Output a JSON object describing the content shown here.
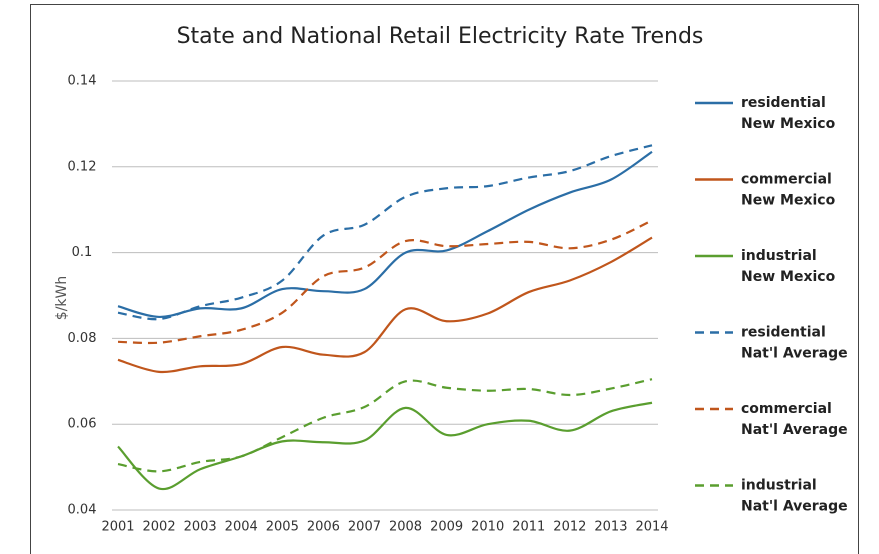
{
  "chart_data": {
    "type": "line",
    "title": "State and National Retail Electricity Rate Trends",
    "y_label": "$/kWh",
    "categories": [
      "2001",
      "2002",
      "2003",
      "2004",
      "2005",
      "2006",
      "2007",
      "2008",
      "2009",
      "2010",
      "2011",
      "2012",
      "2013",
      "2014"
    ],
    "series": [
      {
        "name": "residential New Mexico",
        "color": "#2b6ea6",
        "dashed": false,
        "values": [
          0.0875,
          0.085,
          0.087,
          0.087,
          0.0915,
          0.091,
          0.0915,
          0.1,
          0.1005,
          0.105,
          0.11,
          0.114,
          0.117,
          0.1235
        ]
      },
      {
        "name": "commercial New Mexico",
        "color": "#c0561c",
        "dashed": false,
        "values": [
          0.075,
          0.0722,
          0.0735,
          0.074,
          0.078,
          0.0762,
          0.0768,
          0.0868,
          0.084,
          0.0858,
          0.0908,
          0.0935,
          0.0978,
          0.1035
        ]
      },
      {
        "name": "industrial New Mexico",
        "color": "#5a9e2f",
        "dashed": false,
        "values": [
          0.0548,
          0.045,
          0.0495,
          0.0525,
          0.056,
          0.0558,
          0.0562,
          0.0638,
          0.0575,
          0.06,
          0.0608,
          0.0585,
          0.063,
          0.065
        ]
      },
      {
        "name": "residential Nat'l Average",
        "color": "#2b6ea6",
        "dashed": true,
        "values": [
          0.086,
          0.0845,
          0.0875,
          0.0895,
          0.0935,
          0.104,
          0.1065,
          0.113,
          0.115,
          0.1155,
          0.1175,
          0.119,
          0.1225,
          0.125
        ]
      },
      {
        "name": "commercial Nat'l Average",
        "color": "#c0561c",
        "dashed": true,
        "values": [
          0.0792,
          0.079,
          0.0805,
          0.082,
          0.086,
          0.0945,
          0.0965,
          0.1027,
          0.1015,
          0.102,
          0.1025,
          0.101,
          0.103,
          0.1075
        ]
      },
      {
        "name": "industrial Nat'l Average",
        "color": "#5a9e2f",
        "dashed": true,
        "values": [
          0.0507,
          0.049,
          0.0512,
          0.0525,
          0.057,
          0.0615,
          0.064,
          0.07,
          0.0685,
          0.0678,
          0.0682,
          0.0668,
          0.0683,
          0.0705
        ]
      }
    ],
    "ylim": [
      0.04,
      0.14
    ],
    "yticks": [
      0.04,
      0.06,
      0.08,
      0.1,
      0.12,
      0.14
    ],
    "grid": true,
    "legend": "right"
  }
}
